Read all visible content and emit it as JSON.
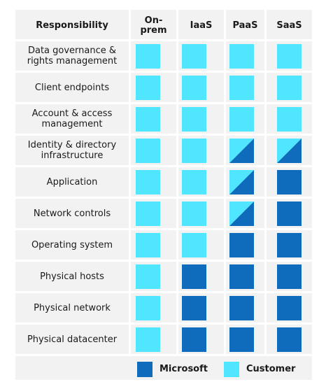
{
  "header": {
    "responsibility": "Responsibility",
    "columns": [
      "On-\nprem",
      "IaaS",
      "PaaS",
      "SaaS"
    ]
  },
  "rows": [
    {
      "label": "Data governance &\nrights management",
      "cells": [
        "customer",
        "customer",
        "customer",
        "customer"
      ]
    },
    {
      "label": "Client endpoints",
      "cells": [
        "customer",
        "customer",
        "customer",
        "customer"
      ]
    },
    {
      "label": "Account & access\nmanagement",
      "cells": [
        "customer",
        "customer",
        "customer",
        "customer"
      ]
    },
    {
      "label": "Identity & directory\ninfrastructure",
      "cells": [
        "customer",
        "customer",
        "shared",
        "shared"
      ]
    },
    {
      "label": "Application",
      "cells": [
        "customer",
        "customer",
        "shared",
        "microsoft"
      ]
    },
    {
      "label": "Network controls",
      "cells": [
        "customer",
        "customer",
        "shared",
        "microsoft"
      ]
    },
    {
      "label": "Operating system",
      "cells": [
        "customer",
        "customer",
        "microsoft",
        "microsoft"
      ]
    },
    {
      "label": "Physical hosts",
      "cells": [
        "customer",
        "microsoft",
        "microsoft",
        "microsoft"
      ]
    },
    {
      "label": "Physical network",
      "cells": [
        "customer",
        "microsoft",
        "microsoft",
        "microsoft"
      ]
    },
    {
      "label": "Physical datacenter",
      "cells": [
        "customer",
        "microsoft",
        "microsoft",
        "microsoft"
      ]
    }
  ],
  "legend": {
    "microsoft": "Microsoft",
    "customer": "Customer"
  },
  "colors": {
    "microsoft": "#0f6cbd",
    "customer": "#50e6ff",
    "background": "#f2f2f2"
  }
}
